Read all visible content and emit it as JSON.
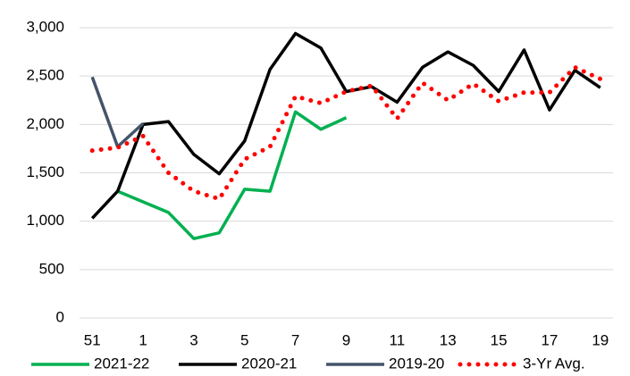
{
  "chart_data": {
    "type": "line",
    "categories": [
      "51",
      null,
      "1",
      null,
      "3",
      null,
      "5",
      null,
      "7",
      null,
      "9",
      null,
      "11",
      null,
      "13",
      null,
      "15",
      null,
      "17",
      null,
      "19"
    ],
    "series": [
      {
        "name": "2021-22",
        "color": "#00b050",
        "style": "solid",
        "values": [
          null,
          1310,
          1200,
          1090,
          820,
          880,
          1330,
          1310,
          2130,
          1950,
          2070,
          null,
          null,
          null,
          null,
          null,
          null,
          null,
          null,
          null,
          null
        ]
      },
      {
        "name": "2020-21",
        "color": "#000000",
        "style": "solid",
        "values": [
          1030,
          1310,
          2000,
          2030,
          1690,
          1490,
          1830,
          2570,
          2940,
          2790,
          2340,
          2390,
          2230,
          2590,
          2750,
          2610,
          2340,
          2770,
          2150,
          2560,
          2380
        ]
      },
      {
        "name": "2019-20",
        "color": "#44546a",
        "style": "solid",
        "values": [
          2490,
          1770,
          2010,
          null,
          null,
          null,
          null,
          null,
          null,
          null,
          null,
          null,
          null,
          null,
          null,
          null,
          null,
          null,
          null,
          null,
          null
        ]
      },
      {
        "name": "3-Yr Avg.",
        "color": "#ff0000",
        "style": "dotted",
        "values": [
          1730,
          1760,
          1880,
          1500,
          1310,
          1230,
          1640,
          1770,
          2290,
          2220,
          2340,
          2400,
          2060,
          2430,
          2250,
          2420,
          2240,
          2330,
          2330,
          2590,
          2470
        ]
      }
    ],
    "ylim": [
      0,
      3000
    ],
    "yticks": [
      0,
      500,
      {
        "value": 1000,
        "label": "1,000"
      },
      {
        "value": 1500,
        "label": "1,500"
      },
      {
        "value": 2000,
        "label": "2,000"
      },
      {
        "value": 2500,
        "label": "2,500"
      },
      {
        "value": 3000,
        "label": "3,000"
      }
    ],
    "grid": true,
    "legend": "bottom"
  }
}
